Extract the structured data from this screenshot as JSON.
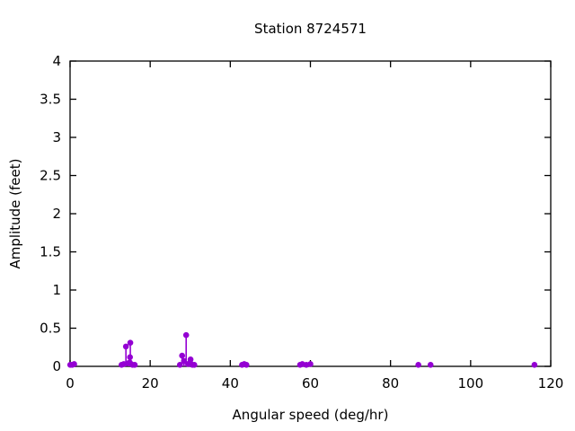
{
  "title": "Station 8724571",
  "chart_data": {
    "type": "scatter",
    "style": "impulses+points",
    "title": "Station 8724571",
    "xlabel": "Angular speed (deg/hr)",
    "ylabel": "Amplitude (feet)",
    "xlim": [
      0,
      120
    ],
    "ylim": [
      0,
      4
    ],
    "xticks": [
      0,
      20,
      40,
      60,
      80,
      100,
      120
    ],
    "yticks": [
      0,
      0.5,
      1,
      1.5,
      2,
      2.5,
      3,
      3.5,
      4
    ],
    "grid": false,
    "legend": "none",
    "border": "box-with-mirrored-ticks",
    "marker": "filled-circle",
    "marker_color": "#9400d3",
    "axis_color": "#000000",
    "background_color": "#ffffff",
    "points": [
      [
        0.04,
        0.02
      ],
      [
        0.54,
        0.02
      ],
      [
        1.02,
        0.03
      ],
      [
        12.85,
        0.02
      ],
      [
        13.4,
        0.03
      ],
      [
        13.94,
        0.26
      ],
      [
        14.49,
        0.04
      ],
      [
        14.92,
        0.05
      ],
      [
        14.96,
        0.12
      ],
      [
        15.04,
        0.31
      ],
      [
        15.59,
        0.02
      ],
      [
        16.14,
        0.02
      ],
      [
        27.42,
        0.02
      ],
      [
        27.97,
        0.14
      ],
      [
        28.44,
        0.07
      ],
      [
        28.98,
        0.41
      ],
      [
        29.46,
        0.03
      ],
      [
        29.97,
        0.05
      ],
      [
        30.08,
        0.09
      ],
      [
        30.54,
        0.02
      ],
      [
        31.02,
        0.02
      ],
      [
        42.93,
        0.02
      ],
      [
        43.48,
        0.03
      ],
      [
        44.03,
        0.02
      ],
      [
        57.42,
        0.02
      ],
      [
        57.97,
        0.03
      ],
      [
        58.98,
        0.02
      ],
      [
        60.0,
        0.03
      ],
      [
        86.95,
        0.02
      ],
      [
        90.0,
        0.02
      ],
      [
        115.94,
        0.02
      ]
    ]
  }
}
